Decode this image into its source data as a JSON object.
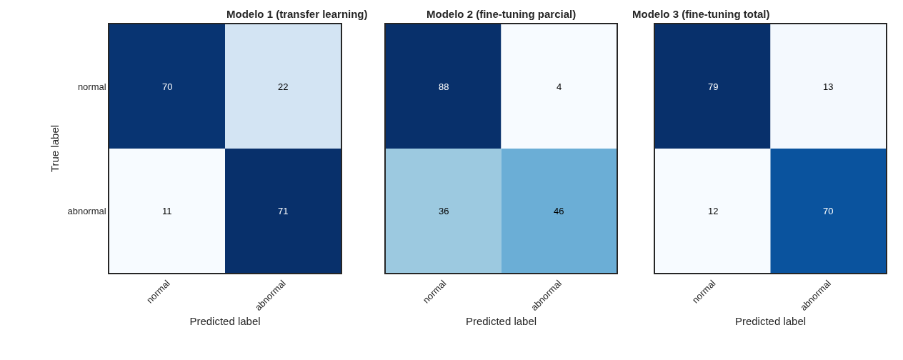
{
  "chart_data": [
    {
      "type": "heatmap",
      "title": "Modelo 1 (transfer learning)",
      "xlabel": "Predicted label",
      "ylabel": "True label",
      "categories": [
        "normal",
        "abnormal"
      ],
      "y_categories": [
        "normal",
        "abnormal"
      ],
      "cells": [
        [
          70,
          22
        ],
        [
          11,
          71
        ]
      ],
      "data_labels": true
    },
    {
      "type": "heatmap",
      "title": "Modelo 2 (fine-tuning parcial)",
      "xlabel": "Predicted label",
      "categories": [
        "normal",
        "abnormal"
      ],
      "y_categories": [
        null,
        null
      ],
      "cells": [
        [
          88,
          4
        ],
        [
          36,
          46
        ]
      ],
      "data_labels": true,
      "tick_labels": "x"
    },
    {
      "type": "heatmap",
      "title": "Modelo 3 (fine-tuning total)",
      "xlabel": "Predicted label",
      "categories": [
        "normal",
        "abnormal"
      ],
      "y_categories": [
        null,
        null
      ],
      "cells": [
        [
          79,
          13
        ],
        [
          12,
          70
        ]
      ],
      "data_labels": true,
      "tick_labels": "x"
    }
  ]
}
